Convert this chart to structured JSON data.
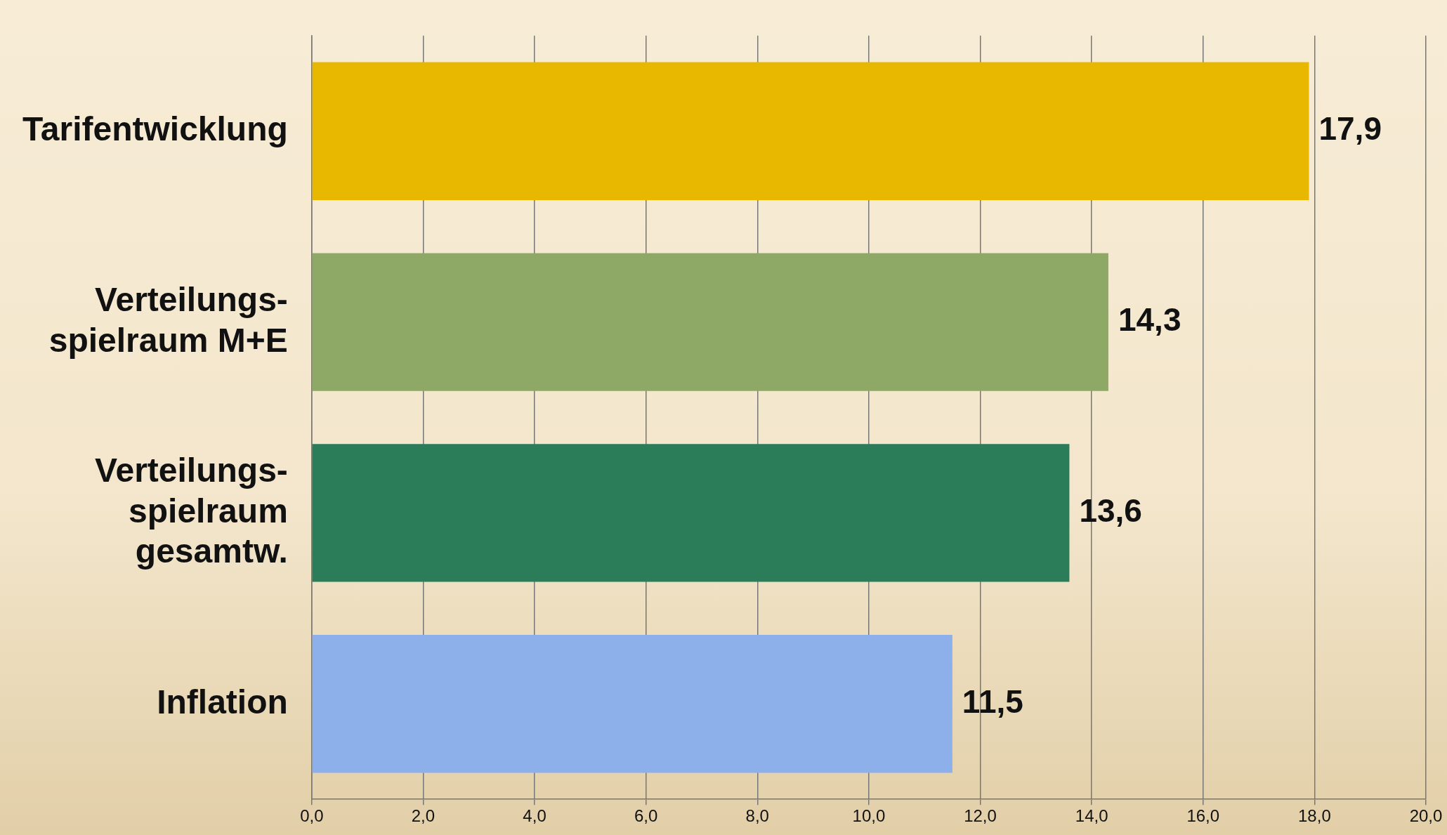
{
  "chart_data": {
    "type": "bar",
    "orientation": "horizontal",
    "categories": [
      "Tarifentwicklung",
      "Verteilungs-\nspielraum M+E",
      "Verteilungs-\nspielraum\ngesamtw.",
      "Inflation"
    ],
    "values": [
      17.9,
      14.3,
      13.6,
      11.5
    ],
    "colors": [
      "#e8b800",
      "#8ea866",
      "#2a7d58",
      "#8db0ea"
    ],
    "value_labels": [
      "17,9",
      "14,3",
      "13,6",
      "11,5"
    ],
    "xlim": [
      0,
      20
    ],
    "xticks": [
      {
        "value": 0,
        "label": "0,0"
      },
      {
        "value": 2,
        "label": "2,0"
      },
      {
        "value": 4,
        "label": "4,0"
      },
      {
        "value": 6,
        "label": "6,0"
      },
      {
        "value": 8,
        "label": "8,0"
      },
      {
        "value": 10,
        "label": "10,0"
      },
      {
        "value": 12,
        "label": "12,0"
      },
      {
        "value": 14,
        "label": "14,0"
      },
      {
        "value": 16,
        "label": "16,0"
      },
      {
        "value": 18,
        "label": "18,0"
      },
      {
        "value": 20,
        "label": "20,0"
      }
    ],
    "grid": "x"
  }
}
